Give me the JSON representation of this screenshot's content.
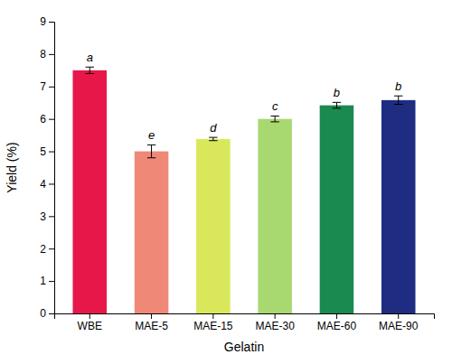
{
  "chart_data": {
    "type": "bar",
    "categories": [
      "WBE",
      "MAE-5",
      "MAE-15",
      "MAE-30",
      "MAE-60",
      "MAE-90"
    ],
    "values": [
      7.5,
      5.0,
      5.38,
      6.0,
      6.42,
      6.58
    ],
    "errors": [
      0.1,
      0.2,
      0.05,
      0.09,
      0.09,
      0.13
    ],
    "colors": [
      "#E8174A",
      "#F08878",
      "#D8E85A",
      "#A8D870",
      "#1A8A50",
      "#1E2D82"
    ],
    "annotations": [
      "a",
      "e",
      "d",
      "c",
      "b",
      "b"
    ],
    "xlabel": "Gelatin",
    "ylabel": "Yield (%)",
    "ylim": [
      0,
      9
    ],
    "yticks": [
      0,
      1,
      2,
      3,
      4,
      5,
      6,
      7,
      8,
      9
    ],
    "grid": false
  }
}
